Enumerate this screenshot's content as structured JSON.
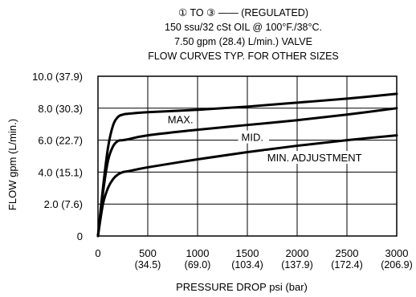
{
  "chart_data": {
    "type": "line",
    "title_lines": [
      "① TO ③ —— (REGULATED)",
      "150 ssu/32 cSt OIL @ 100°F./38°C.",
      "7.50 gpm (28.4) L/min.) VALVE",
      "FLOW CURVES TYP. FOR OTHER SIZES"
    ],
    "xlabel": "PRESSURE DROP psi (bar)",
    "ylabel": "FLOW gpm (L/min.)",
    "xlim": [
      0,
      3000
    ],
    "ylim": [
      0,
      10
    ],
    "grid": true,
    "x_ticks": [
      {
        "value": 0,
        "label": "0",
        "sub": ""
      },
      {
        "value": 500,
        "label": "500",
        "sub": "(34.5)"
      },
      {
        "value": 1000,
        "label": "1000",
        "sub": "(69.0)"
      },
      {
        "value": 1500,
        "label": "1500",
        "sub": "(103.4)"
      },
      {
        "value": 2000,
        "label": "2000",
        "sub": "(137.9)"
      },
      {
        "value": 2500,
        "label": "2500",
        "sub": "(172.4)"
      },
      {
        "value": 3000,
        "label": "3000",
        "sub": "(206.9)"
      }
    ],
    "y_ticks": [
      {
        "value": 0,
        "label": "0"
      },
      {
        "value": 2,
        "label": "2.0 (7.6)"
      },
      {
        "value": 4,
        "label": "4.0 (15.1)"
      },
      {
        "value": 6,
        "label": "6.0 (22.7)"
      },
      {
        "value": 8,
        "label": "8.0 (30.3)"
      },
      {
        "value": 10,
        "label": "10.0 (37.9)"
      }
    ],
    "series": [
      {
        "name": "MAX.",
        "x": [
          0,
          50,
          100,
          150,
          200,
          250,
          300,
          500,
          1000,
          1500,
          2000,
          2500,
          3000
        ],
        "y": [
          0,
          3.0,
          5.5,
          6.9,
          7.45,
          7.6,
          7.65,
          7.75,
          7.9,
          8.1,
          8.35,
          8.6,
          8.9
        ]
      },
      {
        "name": "MID.",
        "x": [
          0,
          50,
          100,
          150,
          200,
          250,
          300,
          500,
          1000,
          1500,
          2000,
          2500,
          3000
        ],
        "y": [
          0,
          2.7,
          4.7,
          5.6,
          5.95,
          6.0,
          6.05,
          6.3,
          6.65,
          6.95,
          7.25,
          7.6,
          8.0
        ]
      },
      {
        "name": "MIN. ADJUSTMENT",
        "x": [
          0,
          50,
          100,
          150,
          200,
          250,
          300,
          500,
          1000,
          1500,
          2000,
          2500,
          3000
        ],
        "y": [
          0,
          2.0,
          3.0,
          3.55,
          3.85,
          4.0,
          4.05,
          4.3,
          4.8,
          5.25,
          5.65,
          6.0,
          6.3
        ]
      }
    ]
  }
}
